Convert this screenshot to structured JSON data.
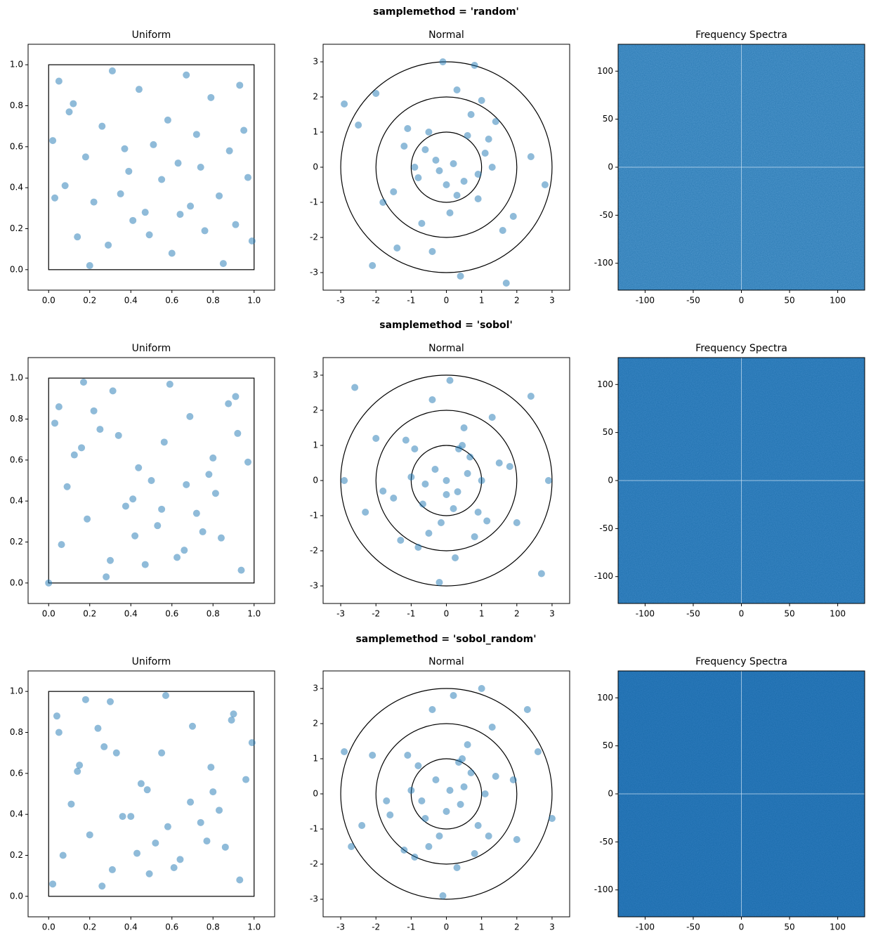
{
  "row_titles": [
    "samplemethod = 'random'",
    "samplemethod = 'sobol'",
    "samplemethod = 'sobol_random'"
  ],
  "chart_data": [
    {
      "type": "scatter",
      "title": "Uniform",
      "color": "#1f77b4",
      "alpha": 0.5,
      "square": [
        0,
        1
      ],
      "x": [
        0.05,
        0.12,
        0.31,
        0.44,
        0.58,
        0.67,
        0.79,
        0.93,
        0.02,
        0.18,
        0.26,
        0.39,
        0.51,
        0.63,
        0.72,
        0.88,
        0.97,
        0.08,
        0.22,
        0.35,
        0.47,
        0.55,
        0.69,
        0.83,
        0.91,
        0.14,
        0.29,
        0.41,
        0.6,
        0.76,
        0.85,
        0.99,
        0.03,
        0.2,
        0.37,
        0.49,
        0.64,
        0.74,
        0.95,
        0.1
      ],
      "y": [
        0.92,
        0.81,
        0.97,
        0.88,
        0.73,
        0.95,
        0.84,
        0.9,
        0.63,
        0.55,
        0.7,
        0.48,
        0.61,
        0.52,
        0.66,
        0.58,
        0.45,
        0.41,
        0.33,
        0.37,
        0.28,
        0.44,
        0.31,
        0.36,
        0.22,
        0.16,
        0.12,
        0.24,
        0.08,
        0.19,
        0.03,
        0.14,
        0.35,
        0.02,
        0.59,
        0.17,
        0.27,
        0.5,
        0.68,
        0.77
      ],
      "xlim": [
        -0.1,
        1.1
      ],
      "ylim": [
        -0.1,
        1.1
      ],
      "xticks": [
        {
          "value": 0,
          "label": "0.0"
        },
        0.2,
        0.4,
        0.6,
        0.8,
        {
          "value": 1,
          "label": "1.0"
        }
      ],
      "yticks": [
        {
          "value": 0,
          "label": "0.0"
        },
        0.2,
        0.4,
        0.6,
        0.8,
        {
          "value": 1,
          "label": "1.0"
        }
      ]
    },
    {
      "type": "scatter",
      "title": "Normal",
      "color": "#1f77b4",
      "alpha": 0.5,
      "circles": [
        1,
        2,
        3
      ],
      "x": [
        -0.3,
        0.5,
        1.2,
        -1.1,
        0.1,
        -0.6,
        0.9,
        -2.0,
        2.4,
        -0.2,
        0.7,
        -1.5,
        1.6,
        0.3,
        -0.9,
        0.0,
        1.1,
        -0.4,
        2.8,
        -2.9,
        0.6,
        -1.8,
        1.4,
        -0.7,
        0.2,
        -1.2,
        0.9,
        -0.1,
        1.9,
        -2.5,
        0.4,
        -0.8,
        1.7,
        0.8,
        -0.5,
        -1.4,
        0.3,
        1.0,
        -2.1,
        1.3
      ],
      "y": [
        0.2,
        -0.4,
        0.8,
        1.1,
        -1.3,
        0.5,
        -0.9,
        2.1,
        0.3,
        -0.1,
        1.5,
        -0.7,
        -1.8,
        2.2,
        0.0,
        -0.5,
        0.4,
        -2.4,
        -0.5,
        1.8,
        0.9,
        -1.0,
        1.3,
        -1.6,
        0.1,
        0.6,
        -0.2,
        3.0,
        -1.4,
        1.2,
        -3.1,
        -0.3,
        -3.3,
        2.9,
        1.0,
        -2.3,
        -0.8,
        1.9,
        -2.8,
        0.0
      ],
      "xlim": [
        -3.5,
        3.5
      ],
      "ylim": [
        -3.5,
        3.5
      ],
      "xticks": [
        -3,
        -2,
        -1,
        0,
        1,
        2,
        3
      ],
      "yticks": [
        -3,
        -2,
        -1,
        0,
        1,
        2,
        3
      ]
    },
    {
      "type": "heatmap",
      "title": "Frequency Spectra",
      "color": "#4f96cc",
      "xlim": [
        -128,
        128
      ],
      "ylim": [
        -128,
        128
      ],
      "xticks": [
        -100,
        -50,
        0,
        50,
        100
      ],
      "yticks": [
        -100,
        -50,
        0,
        50,
        100
      ]
    },
    {
      "type": "scatter",
      "title": "Uniform",
      "color": "#1f77b4",
      "alpha": 0.5,
      "square": [
        0,
        1
      ],
      "x": [
        0.0,
        0.5,
        0.75,
        0.25,
        0.375,
        0.875,
        0.625,
        0.125,
        0.1875,
        0.6875,
        0.9375,
        0.4375,
        0.3125,
        0.8125,
        0.5625,
        0.0625,
        0.09,
        0.59,
        0.84,
        0.34,
        0.47,
        0.97,
        0.72,
        0.22,
        0.16,
        0.66,
        0.91,
        0.41,
        0.28,
        0.78,
        0.53,
        0.03,
        0.05,
        0.55,
        0.8,
        0.3,
        0.42,
        0.92,
        0.67,
        0.17
      ],
      "y": [
        0.0,
        0.5,
        0.25,
        0.75,
        0.375,
        0.875,
        0.125,
        0.625,
        0.3125,
        0.8125,
        0.0625,
        0.5625,
        0.9375,
        0.4375,
        0.6875,
        0.1875,
        0.47,
        0.97,
        0.22,
        0.72,
        0.09,
        0.59,
        0.34,
        0.84,
        0.66,
        0.16,
        0.91,
        0.41,
        0.03,
        0.53,
        0.28,
        0.78,
        0.86,
        0.36,
        0.61,
        0.11,
        0.23,
        0.73,
        0.48,
        0.98
      ],
      "xlim": [
        -0.1,
        1.1
      ],
      "ylim": [
        -0.1,
        1.1
      ],
      "xticks": [
        {
          "value": 0,
          "label": "0.0"
        },
        0.2,
        0.4,
        0.6,
        0.8,
        {
          "value": 1,
          "label": "1.0"
        }
      ],
      "yticks": [
        {
          "value": 0,
          "label": "0.0"
        },
        0.2,
        0.4,
        0.6,
        0.8,
        {
          "value": 1,
          "label": "1.0"
        }
      ]
    },
    {
      "type": "scatter",
      "title": "Normal",
      "color": "#1f77b4",
      "alpha": 0.5,
      "circles": [
        1,
        2,
        3
      ],
      "x": [
        0,
        0.67,
        -0.67,
        0.32,
        -1.15,
        1.15,
        -0.32,
        -2.9,
        2.9,
        -0.5,
        0.5,
        1.5,
        -1.5,
        0.9,
        -0.9,
        0.1,
        -0.2,
        2.0,
        -2.0,
        0.25,
        -0.8,
        1.3,
        -1.3,
        0.6,
        -0.4,
        1.8,
        -1.8,
        0.0,
        0.35,
        -2.6,
        2.7,
        -0.15,
        0.8,
        -1.0,
        1.0,
        0.45,
        -0.6,
        2.4,
        -2.3,
        0.2
      ],
      "y": [
        0,
        0.67,
        -0.67,
        -0.32,
        1.15,
        -1.15,
        0.32,
        0,
        0,
        -1.5,
        1.5,
        0.5,
        -0.5,
        -0.9,
        0.9,
        2.85,
        -2.9,
        -1.2,
        1.2,
        -2.2,
        -1.9,
        1.8,
        -1.7,
        0.2,
        2.3,
        0.4,
        -0.3,
        -0.4,
        0.9,
        2.65,
        -2.65,
        -1.2,
        -1.6,
        0.1,
        0.0,
        1.0,
        -0.1,
        2.4,
        -0.9,
        -0.8
      ],
      "xlim": [
        -3.5,
        3.5
      ],
      "ylim": [
        -3.5,
        3.5
      ],
      "xticks": [
        -3,
        -2,
        -1,
        0,
        1,
        2,
        3
      ],
      "yticks": [
        -3,
        -2,
        -1,
        0,
        1,
        2,
        3
      ]
    },
    {
      "type": "heatmap",
      "title": "Frequency Spectra",
      "color": "#3b86c4",
      "xlim": [
        -128,
        128
      ],
      "ylim": [
        -128,
        128
      ],
      "xticks": [
        -100,
        -50,
        0,
        50,
        100
      ],
      "yticks": [
        -100,
        -50,
        0,
        50,
        100
      ]
    },
    {
      "type": "scatter",
      "title": "Uniform",
      "color": "#1f77b4",
      "alpha": 0.5,
      "square": [
        0,
        1
      ],
      "x": [
        0.02,
        0.48,
        0.77,
        0.27,
        0.36,
        0.89,
        0.61,
        0.14,
        0.2,
        0.7,
        0.93,
        0.45,
        0.3,
        0.83,
        0.55,
        0.07,
        0.11,
        0.57,
        0.86,
        0.33,
        0.49,
        0.96,
        0.74,
        0.24,
        0.15,
        0.64,
        0.9,
        0.4,
        0.26,
        0.8,
        0.52,
        0.05,
        0.04,
        0.58,
        0.79,
        0.31,
        0.43,
        0.99,
        0.69,
        0.18
      ],
      "y": [
        0.06,
        0.52,
        0.27,
        0.73,
        0.39,
        0.86,
        0.14,
        0.61,
        0.3,
        0.83,
        0.08,
        0.55,
        0.95,
        0.42,
        0.7,
        0.2,
        0.45,
        0.98,
        0.24,
        0.7,
        0.11,
        0.57,
        0.36,
        0.82,
        0.64,
        0.18,
        0.89,
        0.39,
        0.05,
        0.51,
        0.26,
        0.8,
        0.88,
        0.34,
        0.63,
        0.13,
        0.21,
        0.75,
        0.46,
        0.96
      ],
      "xlim": [
        -0.1,
        1.1
      ],
      "ylim": [
        -0.1,
        1.1
      ],
      "xticks": [
        {
          "value": 0,
          "label": "0.0"
        },
        0.2,
        0.4,
        0.6,
        0.8,
        {
          "value": 1,
          "label": "1.0"
        }
      ],
      "yticks": [
        {
          "value": 0,
          "label": "0.0"
        },
        0.2,
        0.4,
        0.6,
        0.8,
        {
          "value": 1,
          "label": "1.0"
        }
      ]
    },
    {
      "type": "scatter",
      "title": "Normal",
      "color": "#1f77b4",
      "alpha": 0.5,
      "circles": [
        1,
        2,
        3
      ],
      "x": [
        0.1,
        0.7,
        -0.6,
        0.4,
        -1.1,
        1.2,
        -0.3,
        -2.9,
        3.0,
        -0.5,
        0.6,
        1.4,
        -1.6,
        0.9,
        -0.8,
        0.2,
        -0.1,
        2.0,
        -2.1,
        0.3,
        -0.9,
        1.3,
        -1.2,
        0.5,
        -0.4,
        1.9,
        -1.7,
        0.0,
        0.35,
        -2.7,
        2.3,
        -0.2,
        0.8,
        -1.0,
        1.1,
        0.45,
        -0.7,
        2.6,
        -2.4,
        1.0
      ],
      "y": [
        0.1,
        0.6,
        -0.7,
        -0.3,
        1.1,
        -1.2,
        0.4,
        1.2,
        -0.7,
        -1.5,
        1.4,
        0.5,
        -0.6,
        -0.9,
        0.8,
        2.8,
        -2.9,
        -1.3,
        1.1,
        -2.1,
        -1.8,
        1.9,
        -1.6,
        0.2,
        2.4,
        0.4,
        -0.2,
        -0.5,
        0.9,
        -1.5,
        2.4,
        -1.2,
        -1.7,
        0.1,
        0.0,
        1.0,
        -0.2,
        1.2,
        -0.9,
        3.0
      ],
      "xlim": [
        -3.5,
        3.5
      ],
      "ylim": [
        -3.5,
        3.5
      ],
      "xticks": [
        -3,
        -2,
        -1,
        0,
        1,
        2,
        3
      ],
      "yticks": [
        -3,
        -2,
        -1,
        0,
        1,
        2,
        3
      ]
    },
    {
      "type": "heatmap",
      "title": "Frequency Spectra",
      "color": "#2f7bbd",
      "xlim": [
        -128,
        128
      ],
      "ylim": [
        -128,
        128
      ],
      "xticks": [
        -100,
        -50,
        0,
        50,
        100
      ],
      "yticks": [
        -100,
        -50,
        0,
        50,
        100
      ]
    }
  ]
}
